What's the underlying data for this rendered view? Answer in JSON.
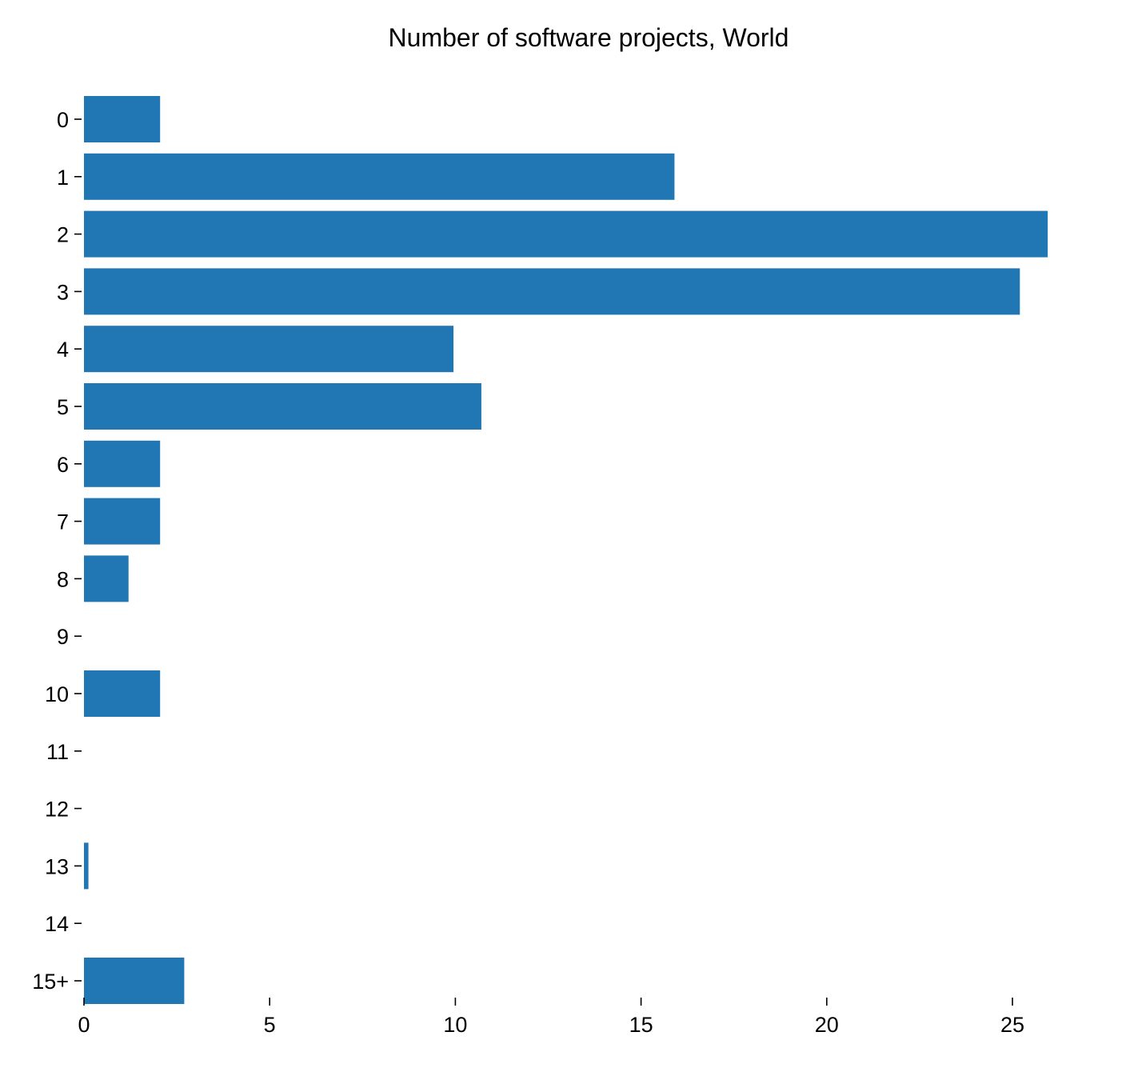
{
  "chart_data": {
    "type": "bar",
    "orientation": "horizontal",
    "title": "Number of software projects, World",
    "xlabel": "",
    "ylabel": "",
    "categories": [
      "0",
      "1",
      "2",
      "3",
      "4",
      "5",
      "6",
      "7",
      "8",
      "9",
      "10",
      "11",
      "12",
      "13",
      "14",
      "15+"
    ],
    "values": [
      2.05,
      15.9,
      25.95,
      25.2,
      9.95,
      10.7,
      2.05,
      2.05,
      1.2,
      0,
      2.05,
      0,
      0,
      0.12,
      0,
      2.7
    ],
    "xlim": [
      0,
      26
    ],
    "x_ticks": [
      0,
      5,
      10,
      15,
      20,
      25
    ],
    "x_tick_labels": [
      "0",
      "5",
      "10",
      "15",
      "20",
      "25"
    ],
    "grid": false,
    "legend": "none",
    "bar_color": "#2077b4"
  }
}
